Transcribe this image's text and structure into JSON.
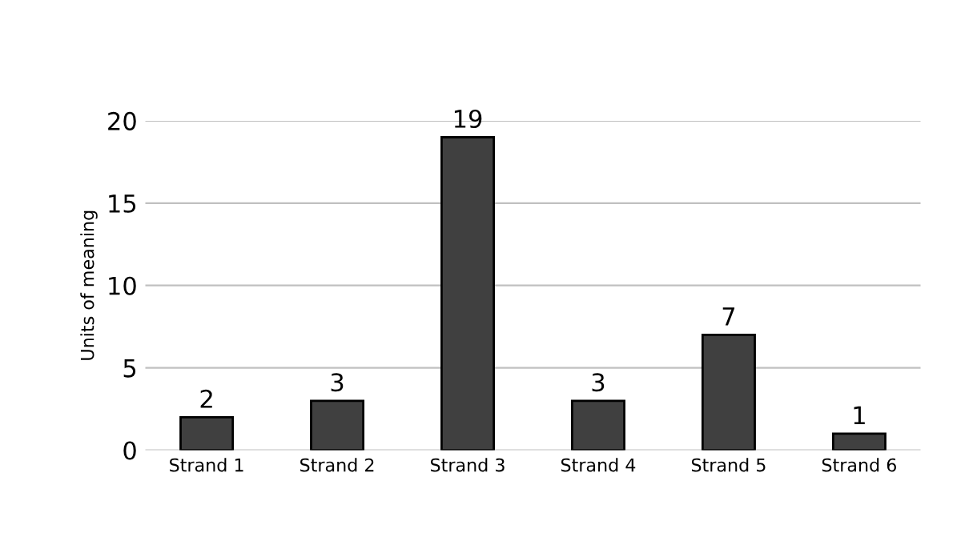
{
  "chart_data": {
    "type": "bar",
    "ylabel": "Units of meaning",
    "categories": [
      "Strand 1",
      "Strand 2",
      "Strand 3",
      "Strand 4",
      "Strand 5",
      "Strand 6"
    ],
    "values": [
      2,
      3,
      19,
      3,
      7,
      1
    ],
    "color": "#404040",
    "ylim": [
      0,
      20
    ],
    "yticks": [
      0,
      5,
      10,
      15,
      20
    ],
    "grid": "y",
    "data_labels": true
  }
}
